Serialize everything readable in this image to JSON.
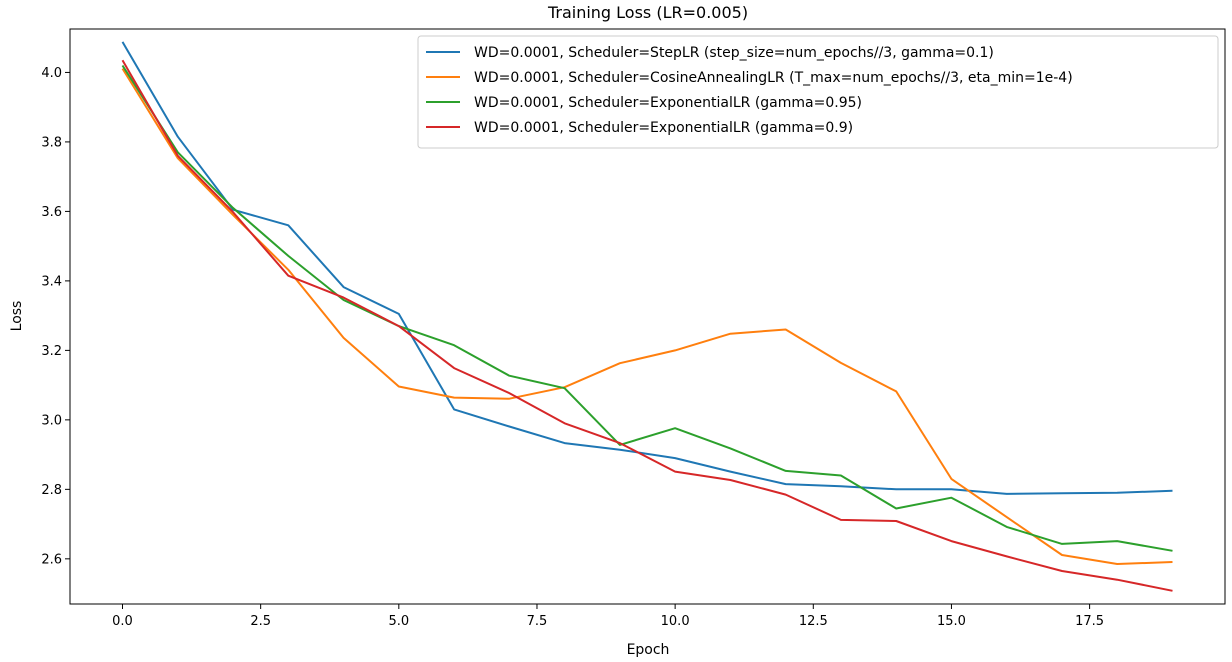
{
  "chart_data": {
    "type": "line",
    "title": "Training Loss (LR=0.005)",
    "xlabel": "Epoch",
    "ylabel": "Loss",
    "xlim": [
      -0.95,
      19.95
    ],
    "ylim": [
      2.47,
      4.125
    ],
    "xticks": [
      0.0,
      2.5,
      5.0,
      7.5,
      10.0,
      12.5,
      15.0,
      17.5
    ],
    "xtick_labels": [
      "0.0",
      "2.5",
      "5.0",
      "7.5",
      "10.0",
      "12.5",
      "15.0",
      "17.5"
    ],
    "yticks": [
      2.6,
      2.8,
      3.0,
      3.2,
      3.4,
      3.6,
      3.8,
      4.0
    ],
    "ytick_labels": [
      "2.6",
      "2.8",
      "3.0",
      "3.2",
      "3.4",
      "3.6",
      "3.8",
      "4.0"
    ],
    "grid": false,
    "legend_position": "top-right",
    "x": [
      0,
      1,
      2,
      3,
      4,
      5,
      6,
      7,
      8,
      9,
      10,
      11,
      12,
      13,
      14,
      15,
      16,
      17,
      18,
      19
    ],
    "series": [
      {
        "name": "WD=0.0001, Scheduler=StepLR (step_size=num_epochs//3, gamma=0.1)",
        "color": "#1f77b4",
        "values": [
          4.088,
          3.815,
          3.605,
          3.56,
          3.382,
          3.305,
          3.03,
          2.981,
          2.933,
          2.914,
          2.89,
          2.851,
          2.815,
          2.809,
          2.8,
          2.8,
          2.787,
          2.789,
          2.79,
          2.796
        ]
      },
      {
        "name": "WD=0.0001, Scheduler=CosineAnnealingLR (T_max=num_epochs//3, eta_min=1e-4)",
        "color": "#ff7f0e",
        "values": [
          4.011,
          3.753,
          3.59,
          3.432,
          3.236,
          3.096,
          3.064,
          3.061,
          3.094,
          3.163,
          3.2,
          3.248,
          3.26,
          3.164,
          3.082,
          2.83,
          2.72,
          2.611,
          2.585,
          2.591
        ]
      },
      {
        "name": "WD=0.0001, Scheduler=ExponentialLR (gamma=0.95)",
        "color": "#2ca02c",
        "values": [
          4.02,
          3.77,
          3.61,
          3.472,
          3.345,
          3.27,
          3.215,
          3.127,
          3.091,
          2.928,
          2.976,
          2.918,
          2.853,
          2.84,
          2.745,
          2.776,
          2.692,
          2.643,
          2.651,
          2.623
        ]
      },
      {
        "name": "WD=0.0001, Scheduler=ExponentialLR (gamma=0.9)",
        "color": "#d62728",
        "values": [
          4.035,
          3.76,
          3.598,
          3.415,
          3.352,
          3.27,
          3.149,
          3.077,
          2.99,
          2.933,
          2.851,
          2.827,
          2.785,
          2.712,
          2.709,
          2.651,
          2.607,
          2.565,
          2.54,
          2.508
        ]
      }
    ]
  }
}
